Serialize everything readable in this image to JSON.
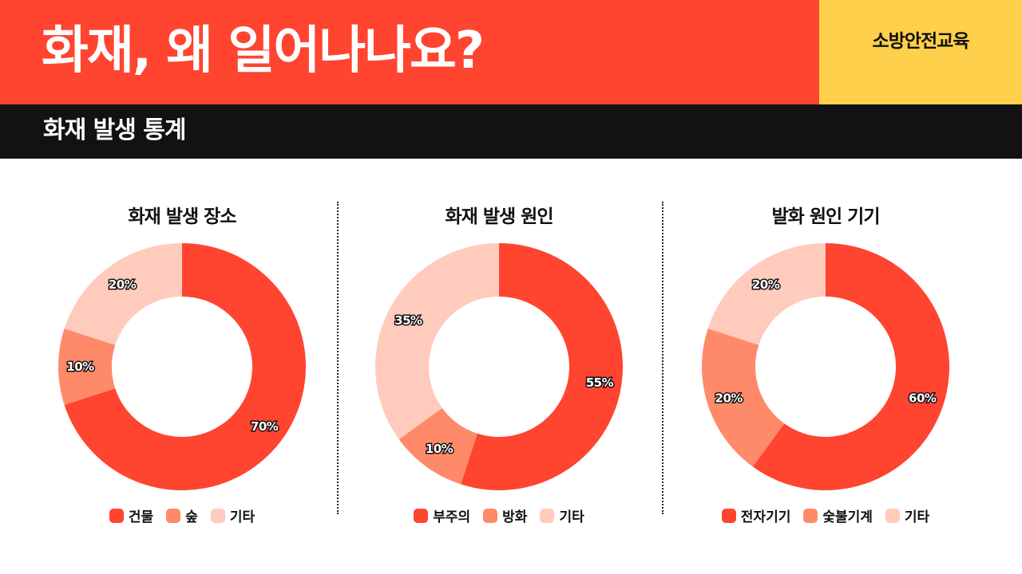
{
  "header": {
    "title": "화재, 왜 일어나나요?",
    "badge": "소방안전교육",
    "subtitle": "화재 발생 통계"
  },
  "colors": {
    "primary": "#ff4430",
    "secondary": "#ff8a6a",
    "tertiary": "#ffcbbd",
    "badge_bg": "#ffd04b",
    "subbar_bg": "#121114"
  },
  "chart_data": [
    {
      "type": "pie",
      "donut": true,
      "title": "화재 발생 장소",
      "categories": [
        "건물",
        "숲",
        "기타"
      ],
      "values": [
        70,
        10,
        20
      ],
      "labels": [
        "70%",
        "10%",
        "20%"
      ],
      "colors": [
        "#ff4430",
        "#ff8a6a",
        "#ffcbbd"
      ],
      "legend_position": "bottom"
    },
    {
      "type": "pie",
      "donut": true,
      "title": "화재 발생 원인",
      "categories": [
        "부주의",
        "방화",
        "기타"
      ],
      "values": [
        55,
        10,
        35
      ],
      "labels": [
        "55%",
        "10%",
        "35%"
      ],
      "colors": [
        "#ff4430",
        "#ff8a6a",
        "#ffcbbd"
      ],
      "legend_position": "bottom"
    },
    {
      "type": "pie",
      "donut": true,
      "title": "발화 원인 기기",
      "categories": [
        "전자기기",
        "숯불기계",
        "기타"
      ],
      "values": [
        60,
        20,
        20
      ],
      "labels": [
        "60%",
        "20%",
        "20%"
      ],
      "colors": [
        "#ff4430",
        "#ff8a6a",
        "#ffcbbd"
      ],
      "legend_position": "bottom"
    }
  ]
}
